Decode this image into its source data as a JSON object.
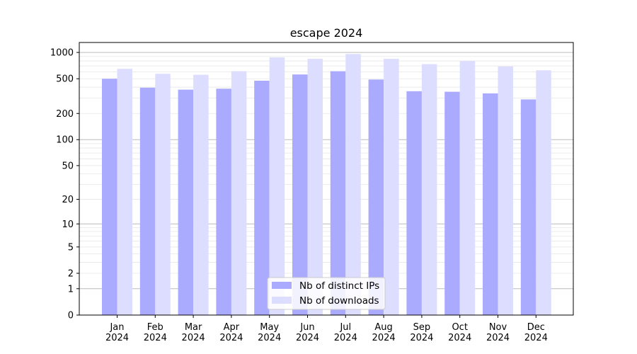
{
  "chart_data": {
    "type": "bar",
    "title": "escape 2024",
    "xlabel": "",
    "ylabel": "",
    "y_scale": "log(1+y)",
    "ylim": [
      0,
      1300
    ],
    "y_ticks": [
      "0",
      "1",
      "2",
      "5",
      "10",
      "20",
      "50",
      "100",
      "200",
      "500",
      "1000"
    ],
    "grid": true,
    "legend_position": "bottom-center",
    "categories": [
      "Jan\n2024",
      "Feb\n2024",
      "Mar\n2024",
      "Apr\n2024",
      "May\n2024",
      "Jun\n2024",
      "Jul\n2024",
      "Aug\n2024",
      "Sep\n2024",
      "Oct\n2024",
      "Nov\n2024",
      "Dec\n2024"
    ],
    "series": [
      {
        "name": "Nb of distinct IPs",
        "color": "#aaaaff",
        "values": [
          500,
          395,
          375,
          385,
          475,
          560,
          610,
          490,
          360,
          355,
          340,
          290
        ]
      },
      {
        "name": "Nb of downloads",
        "color": "#ddddff",
        "values": [
          650,
          570,
          555,
          610,
          880,
          845,
          960,
          845,
          735,
          795,
          690,
          625
        ]
      }
    ]
  }
}
